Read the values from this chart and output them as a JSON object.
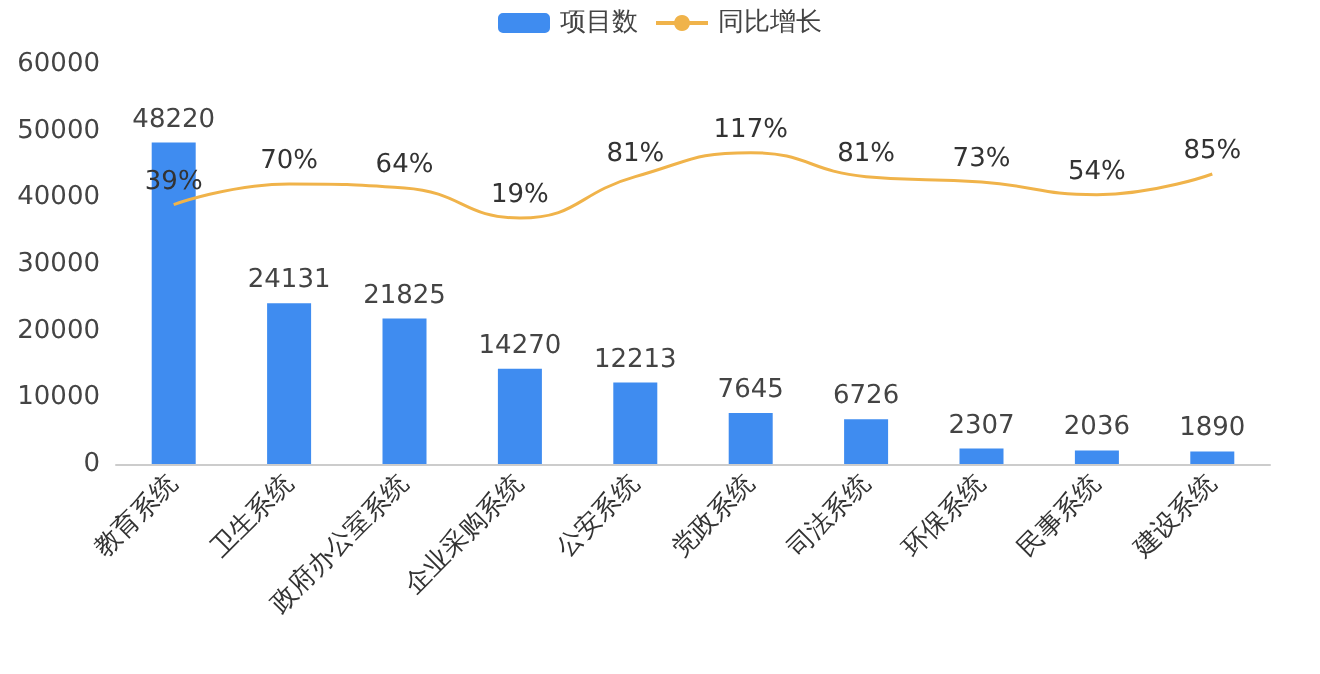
{
  "chart_data": {
    "type": "bar",
    "categories": [
      "教育系统",
      "卫生系统",
      "政府办公室系统",
      "企业采购系统",
      "公安系统",
      "党政系统",
      "司法系统",
      "环保系统",
      "民事系统",
      "建设系统"
    ],
    "series": [
      {
        "name": "项目数",
        "color": "#3f8cf0",
        "values": [
          48220,
          24131,
          21825,
          14270,
          12213,
          7645,
          6726,
          2307,
          2036,
          1890
        ]
      },
      {
        "name": "同比增长",
        "type": "line",
        "axis": "y2",
        "color": "#f0b34a",
        "values": [
          39,
          70,
          64,
          19,
          81,
          117,
          81,
          73,
          54,
          85
        ],
        "value_labels": [
          "39%",
          "70%",
          "64%",
          "19%",
          "81%",
          "117%",
          "81%",
          "73%",
          "54%",
          "85%"
        ]
      }
    ],
    "ylim": [
      0,
      60000
    ],
    "yticks": [
      0,
      10000,
      20000,
      30000,
      40000,
      50000,
      60000
    ],
    "data_labels": true,
    "legend": "top",
    "grid": false,
    "marker": "none",
    "line_style": "solid"
  }
}
